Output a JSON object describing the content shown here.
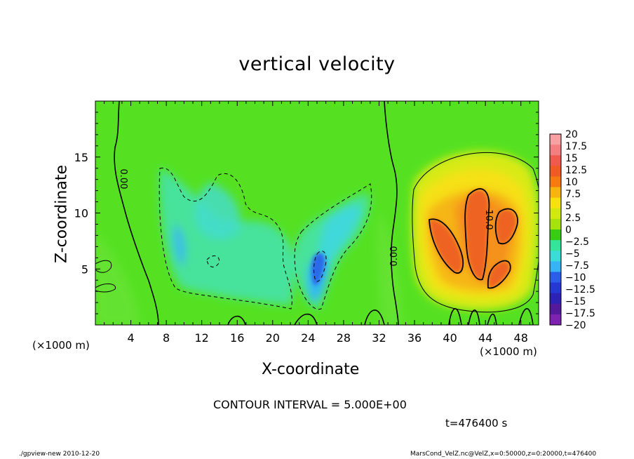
{
  "chart_data": {
    "type": "heatmap",
    "title": "vertical velocity",
    "xlabel": "X-coordinate",
    "ylabel": "Z-coordinate",
    "x_unit_left": "(×1000 m)",
    "x_unit_right": "(×1000 m)",
    "xlim": [
      0,
      50
    ],
    "ylim": [
      0,
      20
    ],
    "x_ticks": [
      4,
      8,
      12,
      16,
      20,
      24,
      28,
      32,
      36,
      40,
      44,
      48
    ],
    "y_ticks": [
      5,
      10,
      15
    ],
    "colorbar_levels": [
      "20",
      "17.5",
      "15",
      "12.5",
      "10",
      "7.5",
      "5",
      "2.5",
      "0",
      "-2.5",
      "-5",
      "-7.5",
      "-10",
      "-12.5",
      "-15",
      "-17.5",
      "-20"
    ],
    "colorbar_colors": [
      "#f7a1a3",
      "#f47f81",
      "#f05a4c",
      "#ef5b22",
      "#f57a10",
      "#f8b40e",
      "#f7e20f",
      "#d2e90f",
      "#a6e20c",
      "#38cd12",
      "#35e59c",
      "#3bdcd8",
      "#35b3f5",
      "#2a5de8",
      "#2638d4",
      "#2e22b6",
      "#531b9b",
      "#7e22b2"
    ],
    "contour_labels": [
      "0.00",
      "0.00",
      "10.0"
    ],
    "contour_interval": "CONTOUR INTERVAL = 5.000E+00",
    "time": "t=476400 s",
    "grid": false,
    "legend": "right"
  },
  "footer": {
    "left": "./gpview-new  2010-12-20",
    "right": "MarsCond_VelZ.nc@VelZ,x=0:50000,z=0:20000,t=476400"
  }
}
